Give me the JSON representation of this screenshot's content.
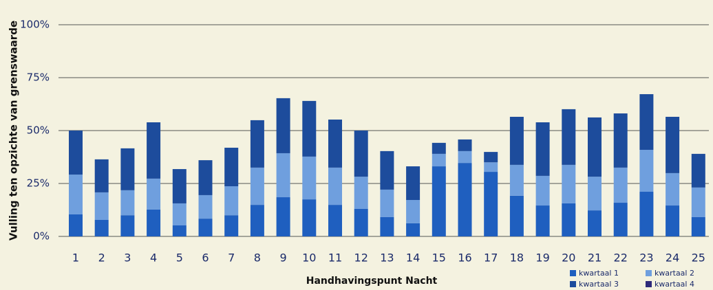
{
  "chart_data": {
    "type": "stacked_bar",
    "y_label": "Vulling ten opzichte van grenswaarde",
    "x_label": "Handhavingspunt Nacht",
    "categories": [
      "1",
      "2",
      "3",
      "4",
      "5",
      "6",
      "7",
      "8",
      "9",
      "10",
      "11",
      "12",
      "13",
      "14",
      "15",
      "16",
      "17",
      "18",
      "19",
      "20",
      "21",
      "22",
      "23",
      "24",
      "25"
    ],
    "series": [
      {
        "name": "kwartaal 1",
        "color": "#1f5fbf",
        "values": [
          10.4,
          7.8,
          10,
          12.7,
          5.2,
          8.4,
          10,
          14.9,
          18.5,
          17.5,
          14.9,
          13,
          9.1,
          6.2,
          33.1,
          34.7,
          30.5,
          19.2,
          14.6,
          15.6,
          12.3,
          15.9,
          21.1,
          14.6,
          9.1
        ]
      },
      {
        "name": "kwartaal 2",
        "color": "#6f9fde",
        "values": [
          18.8,
          13,
          11.8,
          14.6,
          10.4,
          11.1,
          13.7,
          17.6,
          20.8,
          20.2,
          17.6,
          15.2,
          13,
          11,
          5.9,
          5.6,
          4.5,
          14.6,
          14,
          18.2,
          15.9,
          16.6,
          19.8,
          15.3,
          14
        ]
      },
      {
        "name": "kwartaal 3",
        "color": "#1d4c9c",
        "values": [
          20.8,
          15.6,
          19.8,
          26.6,
          16.2,
          16.5,
          18.2,
          22.4,
          26,
          26.3,
          22.7,
          21.8,
          18.2,
          15.9,
          5.2,
          5.5,
          4.9,
          22.7,
          25.3,
          26.3,
          28,
          25.6,
          26.3,
          26.6,
          15.9
        ]
      },
      {
        "name": "kwartaal 4",
        "color": "#2e2a7a",
        "values": [
          0,
          0,
          0,
          0,
          0,
          0,
          0,
          0,
          0,
          0,
          0,
          0,
          0,
          0,
          0,
          0,
          0,
          0,
          0,
          0,
          0,
          0,
          0,
          0,
          0
        ]
      }
    ],
    "ylim": [
      0,
      100
    ],
    "yticks": [
      {
        "value": 0,
        "label": "0%"
      },
      {
        "value": 25,
        "label": "25%"
      },
      {
        "value": 50,
        "label": "50%"
      },
      {
        "value": 75,
        "label": "75%"
      },
      {
        "value": 100,
        "label": "100%"
      }
    ],
    "grid": true,
    "legend": "bottom-right"
  }
}
